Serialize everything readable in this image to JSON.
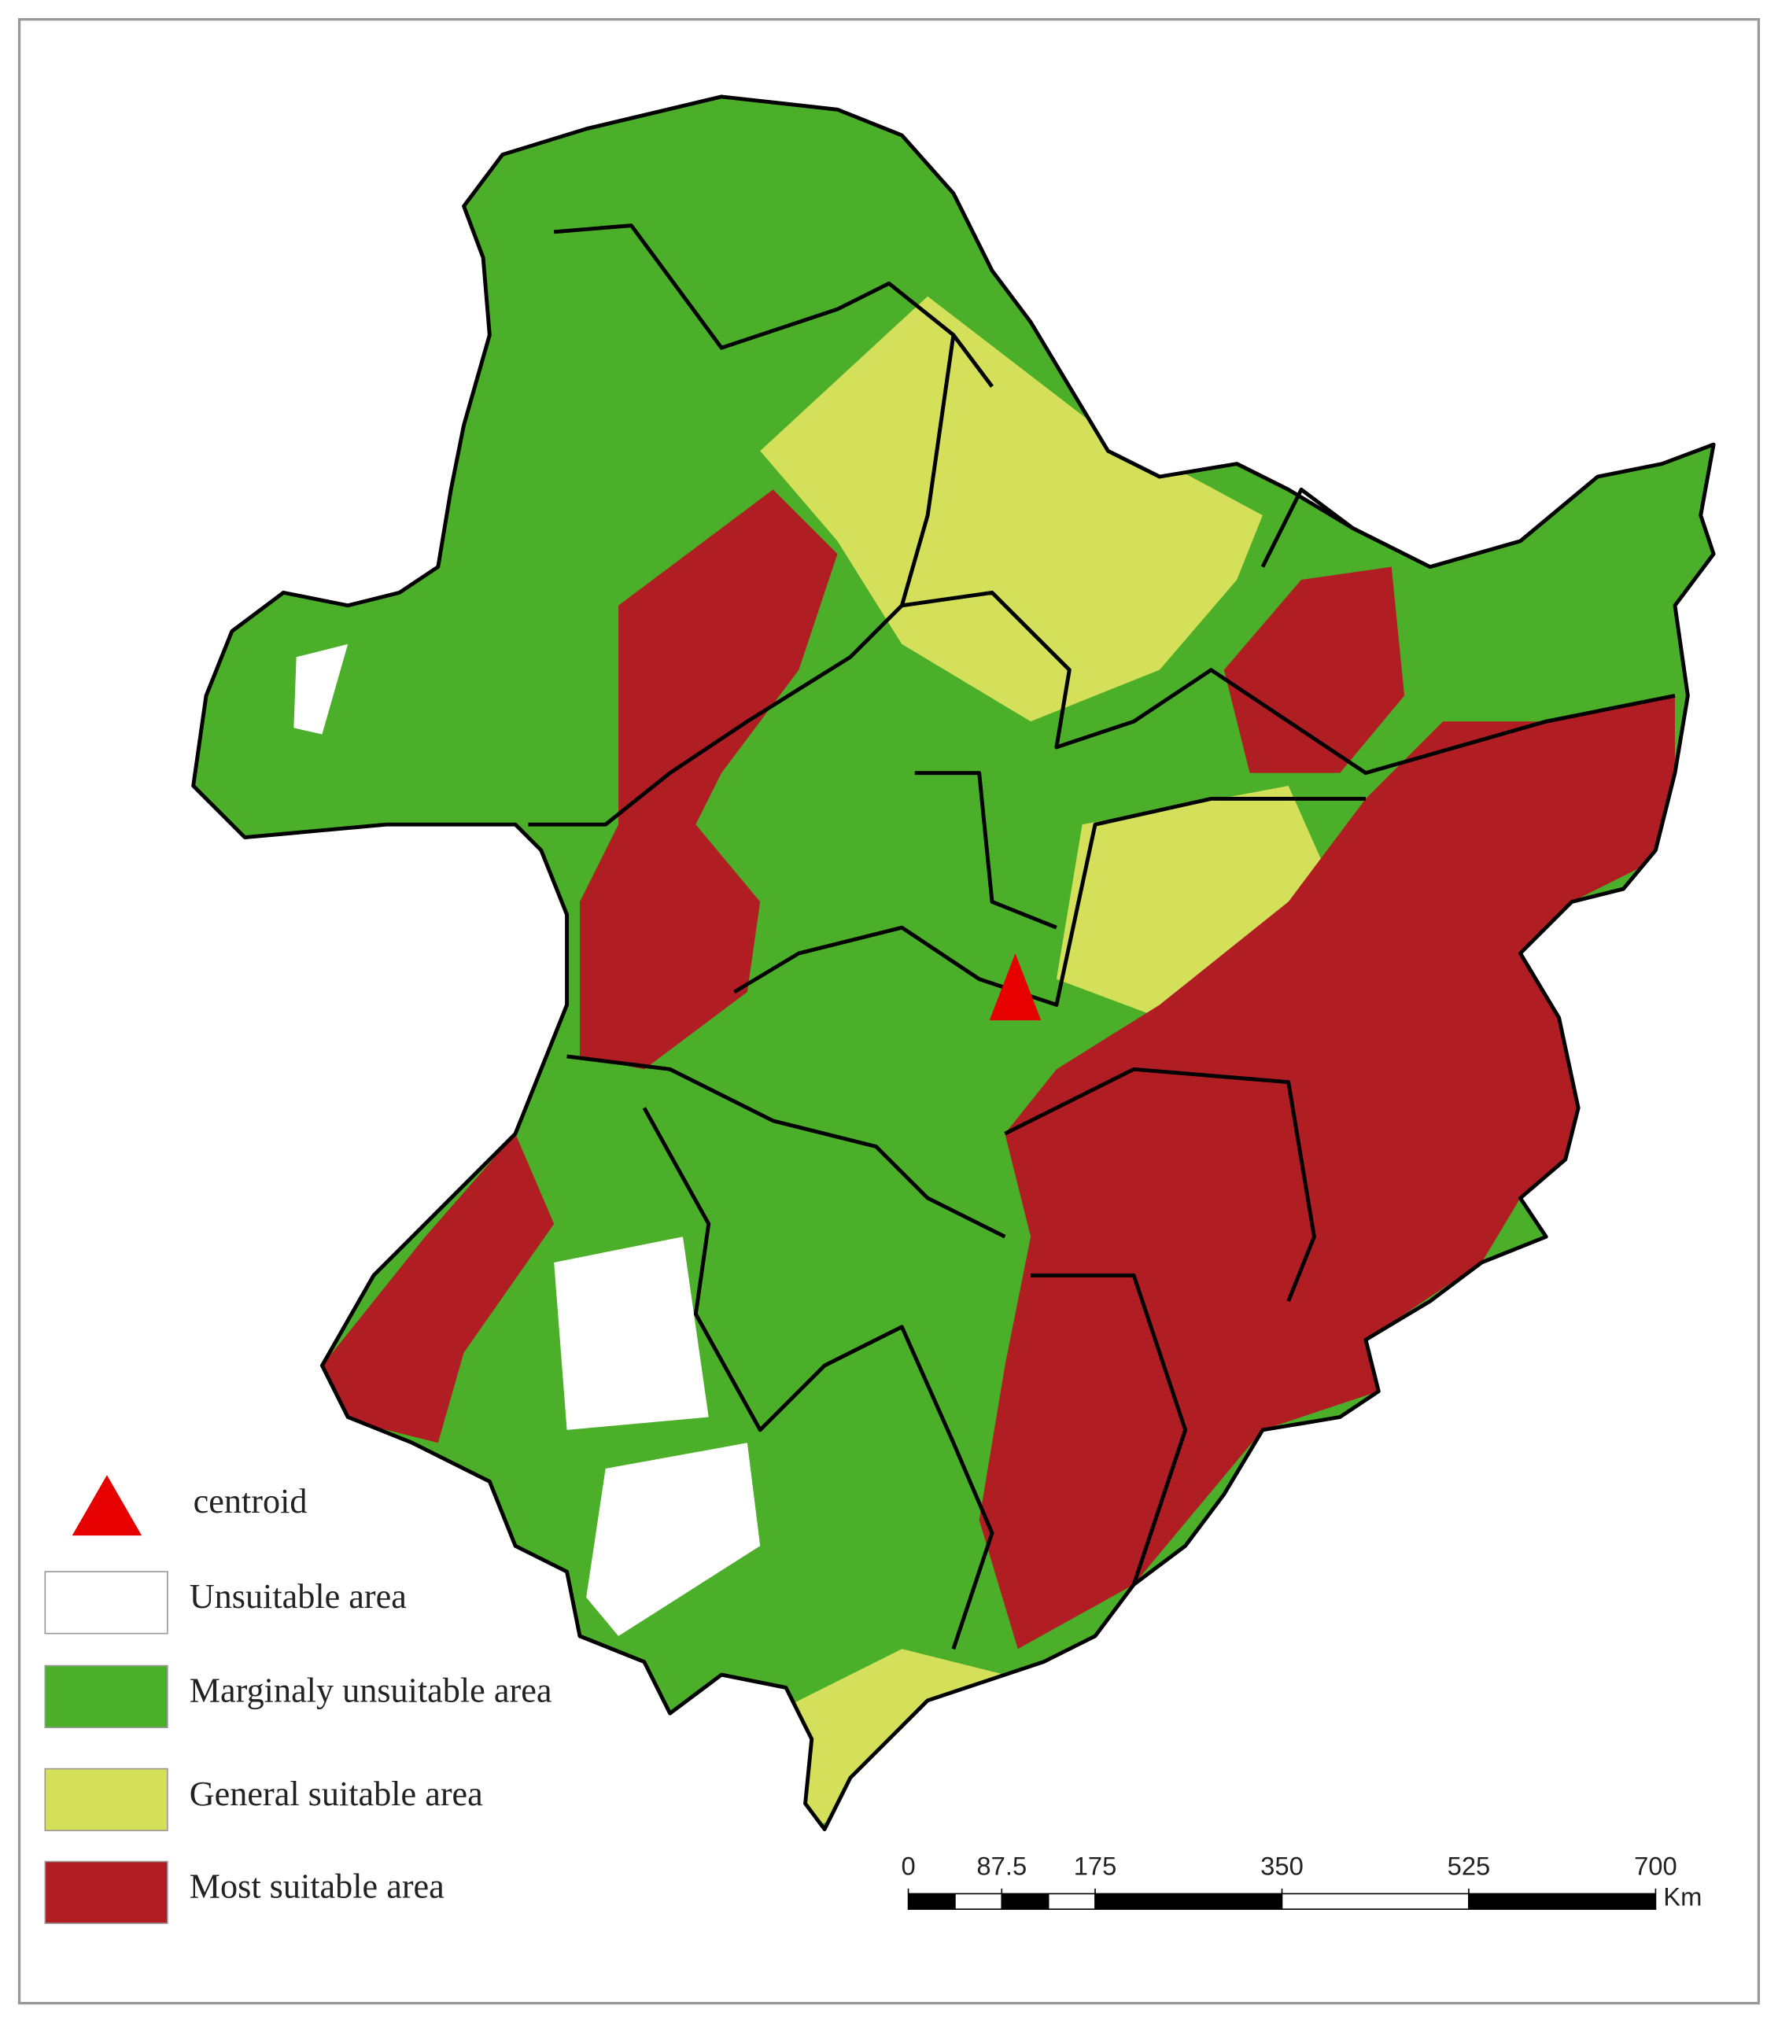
{
  "legend": {
    "centroid": "centroid",
    "items": [
      {
        "label": "Unsuitable area",
        "color": "#ffffff"
      },
      {
        "label": "Marginaly unsuitable area",
        "color": "#4caf2a"
      },
      {
        "label": "General suitable area",
        "color": "#d4df5a"
      },
      {
        "label": "Most suitable area",
        "color": "#b01e23"
      }
    ]
  },
  "scale_bar": {
    "ticks": [
      0,
      87.5,
      175,
      350,
      525,
      700
    ],
    "unit": "Km"
  }
}
